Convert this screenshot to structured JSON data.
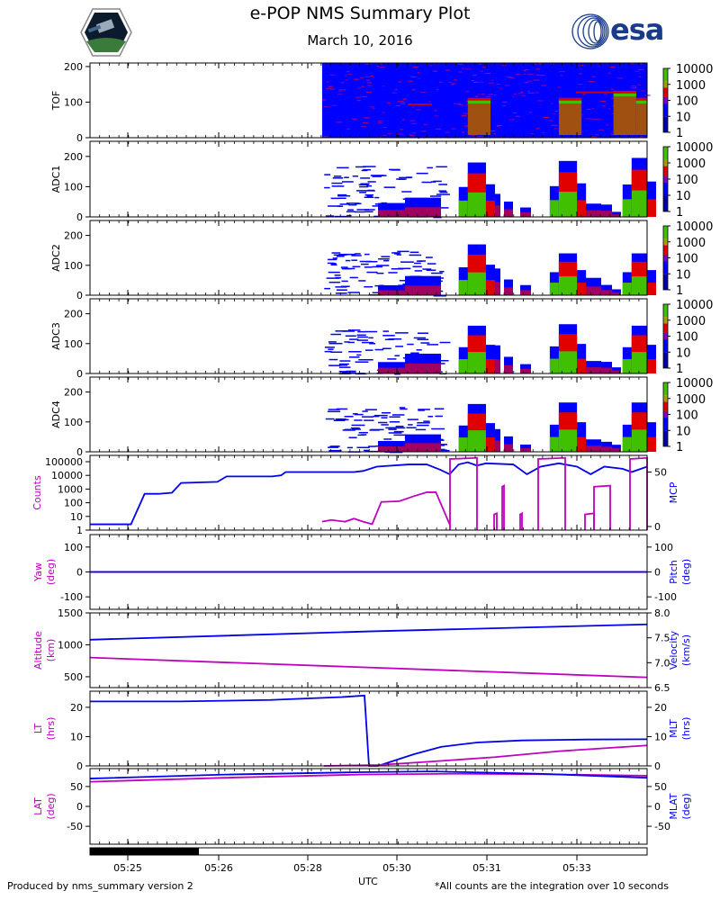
{
  "title": "e-POP NMS Summary Plot",
  "date": "March 10, 2016",
  "logo_text": "esa",
  "footer_left": "Produced by nms_summary version 2",
  "footer_right": "*All counts are the integration over 10 seconds",
  "colors": {
    "magenta": "#c000c0",
    "blue": "#0000ee",
    "spec_blue": "#0000ff",
    "spec_red": "#e00000",
    "spec_green": "#40c000"
  },
  "chart_data": [
    {
      "type": "heatmap",
      "name": "TOF",
      "ylabel": "TOF",
      "ylim": [
        0,
        210
      ],
      "yticks": [
        0,
        100,
        200
      ],
      "colorbar": {
        "ticks": [
          "10000",
          "1000",
          "100",
          "10",
          "1"
        ]
      },
      "data_start_time": "05:28:15",
      "bands": [
        {
          "t0": "05:30:55",
          "t1": "05:31:20",
          "level": 100
        },
        {
          "t0": "05:32:35",
          "t1": "05:33:00",
          "level": 100
        },
        {
          "t0": "05:33:35",
          "t1": "05:34:00",
          "level": 120
        },
        {
          "t0": "05:34:00",
          "t1": "05:34:12",
          "level": 100
        }
      ]
    },
    {
      "type": "heatmap",
      "name": "ADC1",
      "ylabel": "ADC1",
      "ylim": [
        0,
        250
      ],
      "yticks": [
        0,
        100,
        200
      ],
      "colorbar": {
        "ticks": [
          "10000",
          "1000",
          "100",
          "10",
          "1"
        ]
      },
      "blocks": [
        {
          "t0": "05:30:55",
          "t1": "05:31:15",
          "top": 180
        },
        {
          "t0": "05:32:35",
          "t1": "05:32:55",
          "top": 185
        },
        {
          "t0": "05:33:55",
          "t1": "05:34:12",
          "top": 195
        }
      ]
    },
    {
      "type": "heatmap",
      "name": "ADC2",
      "ylabel": "ADC2",
      "ylim": [
        0,
        250
      ],
      "yticks": [
        0,
        100,
        200
      ],
      "colorbar": {
        "ticks": [
          "10000",
          "1000",
          "100",
          "10",
          "1"
        ]
      },
      "blocks": [
        {
          "t0": "05:30:55",
          "t1": "05:31:15",
          "top": 170
        },
        {
          "t0": "05:32:35",
          "t1": "05:32:55",
          "top": 140
        },
        {
          "t0": "05:33:55",
          "t1": "05:34:12",
          "top": 140
        }
      ]
    },
    {
      "type": "heatmap",
      "name": "ADC3",
      "ylabel": "ADC3",
      "ylim": [
        0,
        250
      ],
      "yticks": [
        0,
        100,
        200
      ],
      "colorbar": {
        "ticks": [
          "10000",
          "1000",
          "100",
          "10",
          "1"
        ]
      },
      "blocks": [
        {
          "t0": "05:30:55",
          "t1": "05:31:15",
          "top": 160
        },
        {
          "t0": "05:32:35",
          "t1": "05:32:55",
          "top": 165
        },
        {
          "t0": "05:33:55",
          "t1": "05:34:12",
          "top": 160
        }
      ]
    },
    {
      "type": "heatmap",
      "name": "ADC4",
      "ylabel": "ADC4",
      "ylim": [
        0,
        250
      ],
      "yticks": [
        0,
        100,
        200
      ],
      "colorbar": {
        "ticks": [
          "10000",
          "1000",
          "100",
          "10",
          "1"
        ]
      },
      "blocks": [
        {
          "t0": "05:30:55",
          "t1": "05:31:15",
          "top": 160
        },
        {
          "t0": "05:32:35",
          "t1": "05:32:55",
          "top": 165
        },
        {
          "t0": "05:33:55",
          "t1": "05:34:12",
          "top": 165
        }
      ]
    },
    {
      "type": "line",
      "name": "counts_mcp",
      "ylabel_left": "Counts",
      "ylabel_right": "MCP",
      "left_ticks": [
        "100000",
        "10000",
        "1000",
        "100",
        "10",
        "1"
      ],
      "right_ticks": [
        "50",
        "0"
      ],
      "series": [
        {
          "name": "MCP",
          "color": "#0000ee",
          "points": [
            [
              "05:24:00",
              2
            ],
            [
              "05:24:45",
              2
            ],
            [
              "05:25:00",
              30
            ],
            [
              "05:25:15",
              30
            ],
            [
              "05:25:30",
              31
            ],
            [
              "05:25:40",
              40
            ],
            [
              "05:26:20",
              41
            ],
            [
              "05:26:30",
              46
            ],
            [
              "05:27:20",
              46
            ],
            [
              "05:27:30",
              47
            ],
            [
              "05:27:35",
              50
            ],
            [
              "05:28:15",
              50
            ],
            [
              "05:28:50",
              50
            ],
            [
              "05:29:00",
              51
            ],
            [
              "05:29:15",
              55
            ],
            [
              "05:29:50",
              57
            ],
            [
              "05:30:10",
              57
            ],
            [
              "05:30:25",
              52
            ],
            [
              "05:30:35",
              48
            ],
            [
              "05:30:45",
              57
            ],
            [
              "05:30:55",
              59
            ],
            [
              "05:31:05",
              56
            ],
            [
              "05:31:15",
              58
            ],
            [
              "05:31:45",
              57
            ],
            [
              "05:32:00",
              48
            ],
            [
              "05:32:15",
              55
            ],
            [
              "05:32:35",
              58
            ],
            [
              "05:32:55",
              55
            ],
            [
              "05:33:10",
              48
            ],
            [
              "05:33:25",
              55
            ],
            [
              "05:33:45",
              53
            ],
            [
              "05:33:55",
              50
            ],
            [
              "05:34:12",
              55
            ]
          ]
        },
        {
          "name": "Counts",
          "color": "#c000c0",
          "points": [
            [
              "05:28:15",
              3
            ],
            [
              "05:28:25",
              4
            ],
            [
              "05:28:40",
              3
            ],
            [
              "05:28:50",
              5
            ],
            [
              "05:29:00",
              3
            ],
            [
              "05:29:10",
              2
            ],
            [
              "05:29:20",
              80
            ],
            [
              "05:29:40",
              90
            ],
            [
              "05:29:55",
              200
            ],
            [
              "05:30:10",
              400
            ],
            [
              "05:30:20",
              400
            ],
            [
              "05:30:35",
              2
            ]
          ]
        }
      ]
    },
    {
      "type": "line",
      "name": "yaw_pitch",
      "ylabel_left": "Yaw\n(deg)",
      "ylabel_right": "Pitch\n(deg)",
      "left_ticks": [
        "100",
        "0",
        "-100"
      ],
      "right_ticks": [
        "100",
        "0",
        "-100"
      ],
      "series": [
        {
          "name": "Yaw",
          "color": "#c000c0",
          "values": [
            0
          ]
        },
        {
          "name": "Pitch",
          "color": "#0000ee",
          "values": [
            0
          ]
        }
      ]
    },
    {
      "type": "line",
      "name": "altitude_velocity",
      "ylabel_left": "Altitude\n(km)",
      "ylabel_right": "Velocity\n(km/s)",
      "left_ticks": [
        "1500",
        "1000",
        "500"
      ],
      "right_ticks": [
        "8.0",
        "7.5",
        "7.0",
        "6.5"
      ],
      "series": [
        {
          "name": "Altitude",
          "color": "#c000c0",
          "start": 800,
          "end": 490
        },
        {
          "name": "Velocity",
          "color": "#0000ee",
          "start": 1080,
          "end": 1320
        }
      ]
    },
    {
      "type": "line",
      "name": "lt_mlt",
      "ylabel_left": "LT\n(hrs)",
      "ylabel_right": "MLT\n(hrs)",
      "left_ticks": [
        "20",
        "10",
        "0"
      ],
      "right_ticks": [
        "20",
        "10",
        "0"
      ],
      "series": [
        {
          "name": "LT",
          "color": "#c000c0",
          "description": "rising from 0 after 05:28 to 7 at end"
        },
        {
          "name": "MLT",
          "color": "#0000ee",
          "description": "22 to 24 until 05:29:20, drops to 0, rises to 9"
        }
      ]
    },
    {
      "type": "line",
      "name": "lat_mlat",
      "ylabel_left": "LAT\n(deg)",
      "ylabel_right": "MLAT\n(deg)",
      "left_ticks": [
        "50",
        "0",
        "-50"
      ],
      "right_ticks": [
        "50",
        "0",
        "-50"
      ],
      "series": [
        {
          "name": "LAT",
          "color": "#c000c0",
          "start": 62,
          "peak": 82,
          "end": 77
        },
        {
          "name": "MLAT",
          "color": "#0000ee",
          "start": 70,
          "peak": 88,
          "end": 72
        }
      ]
    }
  ],
  "xaxis": {
    "label": "UTC",
    "ticks": [
      "05:25",
      "05:26",
      "05:28",
      "05:30",
      "05:31",
      "05:33"
    ]
  }
}
